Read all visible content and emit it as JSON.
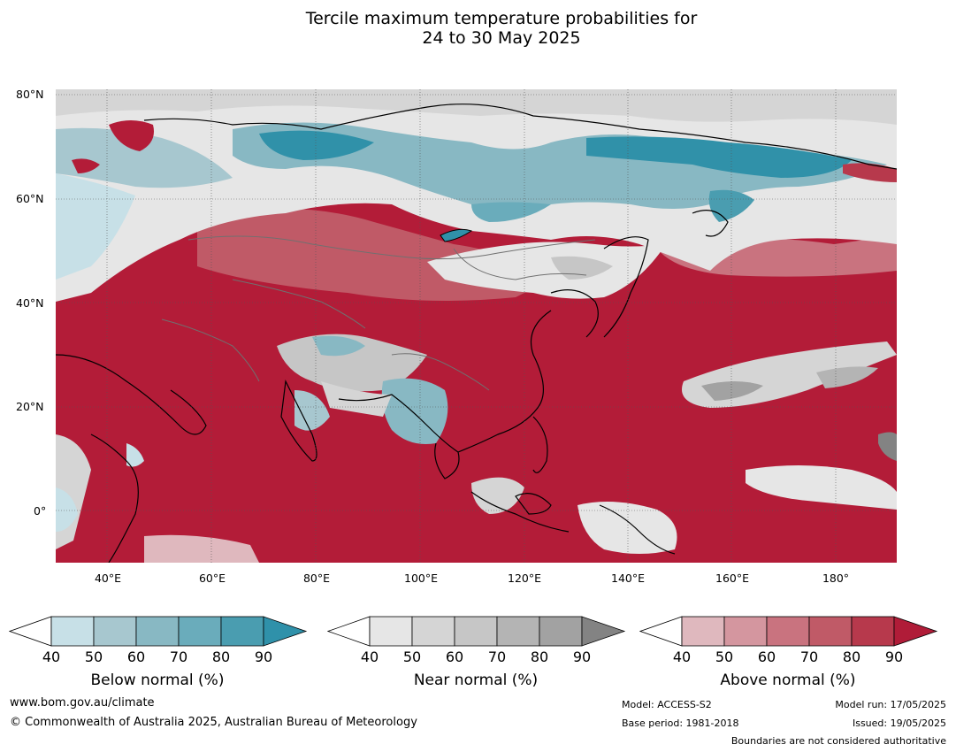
{
  "title": {
    "line1": "Tercile maximum temperature probabilities for",
    "line2": "24 to 30 May 2025"
  },
  "map": {
    "lat_labels": [
      "80°N",
      "60°N",
      "40°N",
      "20°N",
      "0°"
    ],
    "lon_labels": [
      "40°E",
      "60°E",
      "80°E",
      "100°E",
      "120°E",
      "140°E",
      "160°E",
      "180°"
    ],
    "colors": {
      "above_dominant": "#b31c38",
      "below_dominant": "#3091a9",
      "near_dominant": "#c8c8c8"
    }
  },
  "colorbars": [
    {
      "name": "below",
      "title": "Below normal (%)",
      "ticks": [
        "40",
        "50",
        "60",
        "70",
        "80",
        "90"
      ],
      "colors": [
        "#ffffff",
        "#c7e0e7",
        "#a7c7cf",
        "#88b8c3",
        "#6aacbb",
        "#4a9db0",
        "#2f91aa"
      ]
    },
    {
      "name": "near",
      "title": "Near normal (%)",
      "ticks": [
        "40",
        "50",
        "60",
        "70",
        "80",
        "90"
      ],
      "colors": [
        "#ffffff",
        "#e6e6e6",
        "#d5d5d5",
        "#c6c6c6",
        "#b4b4b4",
        "#a2a2a2",
        "#838383"
      ]
    },
    {
      "name": "above",
      "title": "Above normal (%)",
      "ticks": [
        "40",
        "50",
        "60",
        "70",
        "80",
        "90"
      ],
      "colors": [
        "#ffffff",
        "#dfb8be",
        "#d4969f",
        "#c9737f",
        "#c05a67",
        "#b7394c",
        "#b01c38"
      ]
    }
  ],
  "footer": {
    "website": "www.bom.gov.au/climate",
    "copyright": "© Commonwealth of Australia 2025, Australian Bureau of Meteorology",
    "model": "Model: ACCESS-S2",
    "base_period": "Base period: 1981-2018",
    "model_run": "Model run: 17/05/2025",
    "issued": "Issued: 19/05/2025",
    "disclaimer": "Boundaries are not considered authoritative"
  }
}
